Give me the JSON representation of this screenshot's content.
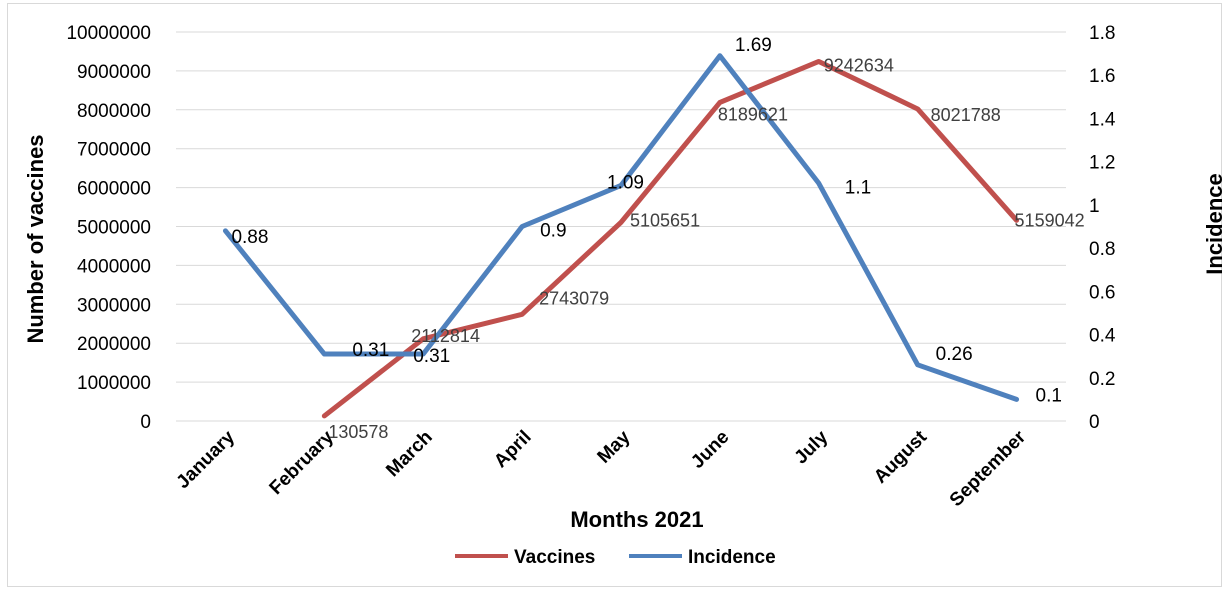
{
  "chart_data": {
    "type": "line",
    "categories": [
      "January",
      "February",
      "March",
      "April",
      "May",
      "June",
      "July",
      "August",
      "September"
    ],
    "series": [
      {
        "name": "Vaccines",
        "axis": "left",
        "color": "#c0504d",
        "values": [
          null,
          130578,
          2112814,
          2743079,
          5105651,
          8189621,
          9242634,
          8021788,
          5159042
        ],
        "labels": [
          "",
          "130578",
          "2112814",
          "2743079",
          "5105651",
          "8189621",
          "9242634",
          "8021788",
          "5159042"
        ]
      },
      {
        "name": "Incidence",
        "axis": "right",
        "color": "#4f81bd",
        "values": [
          0.88,
          0.31,
          0.31,
          0.9,
          1.09,
          1.69,
          1.1,
          0.26,
          0.1
        ],
        "labels": [
          "0.88",
          "0.31",
          "0.31",
          "0.9",
          "1.09",
          "1.69",
          "1.1",
          "0.26",
          "0.1"
        ]
      }
    ],
    "xlabel": "Months 2021",
    "ylabel": "Number of vaccines",
    "y2label": "Incidence",
    "ylim": [
      0,
      10000000
    ],
    "y2lim": [
      0,
      1.8
    ],
    "yticks": [
      "0",
      "1000000",
      "2000000",
      "3000000",
      "4000000",
      "5000000",
      "6000000",
      "7000000",
      "8000000",
      "9000000",
      "10000000"
    ],
    "y2ticks": [
      "0",
      "0.2",
      "0.4",
      "0.6",
      "0.8",
      "1",
      "1.2",
      "1.4",
      "1.6",
      "1.8"
    ],
    "grid": true,
    "legend": "bottom"
  }
}
